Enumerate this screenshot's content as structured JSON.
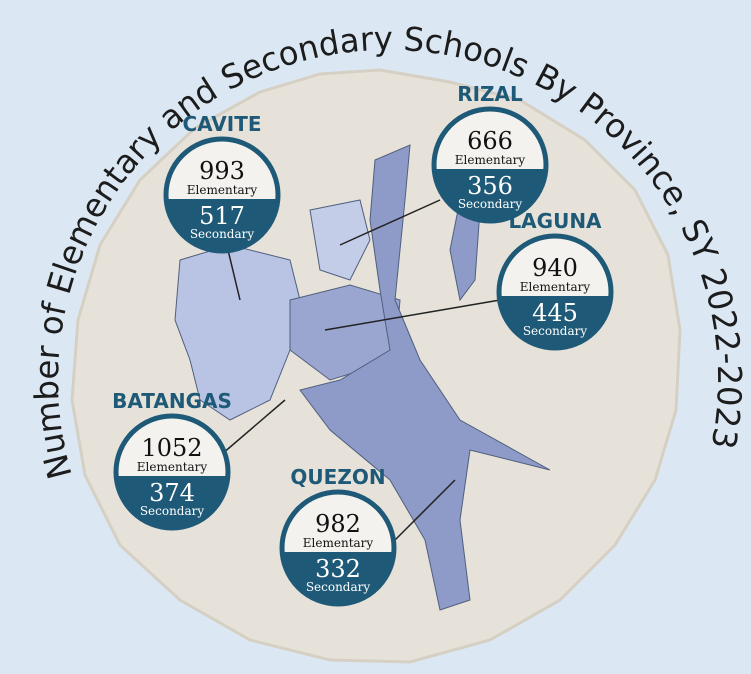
{
  "title": "Number of Elementary and Secondary Schools By Province, SY 2022-2023",
  "provinces": [
    {
      "name": "CAVITE",
      "elementary": 993,
      "elementary_label": "Elementary",
      "secondary": 517,
      "secondary_label": "Secondary"
    },
    {
      "name": "RIZAL",
      "elementary": 666,
      "elementary_label": "Elementary",
      "secondary": 356,
      "secondary_label": "Secondary"
    },
    {
      "name": "LAGUNA",
      "elementary": 940,
      "elementary_label": "Elementary",
      "secondary": 445,
      "secondary_label": "Secondary"
    },
    {
      "name": "BATANGAS",
      "elementary": 1052,
      "elementary_label": "Elementary",
      "secondary": 374,
      "secondary_label": "Secondary"
    },
    {
      "name": "QUEZON",
      "elementary": 982,
      "elementary_label": "Elementary",
      "secondary": 332,
      "secondary_label": "Secondary"
    }
  ]
}
